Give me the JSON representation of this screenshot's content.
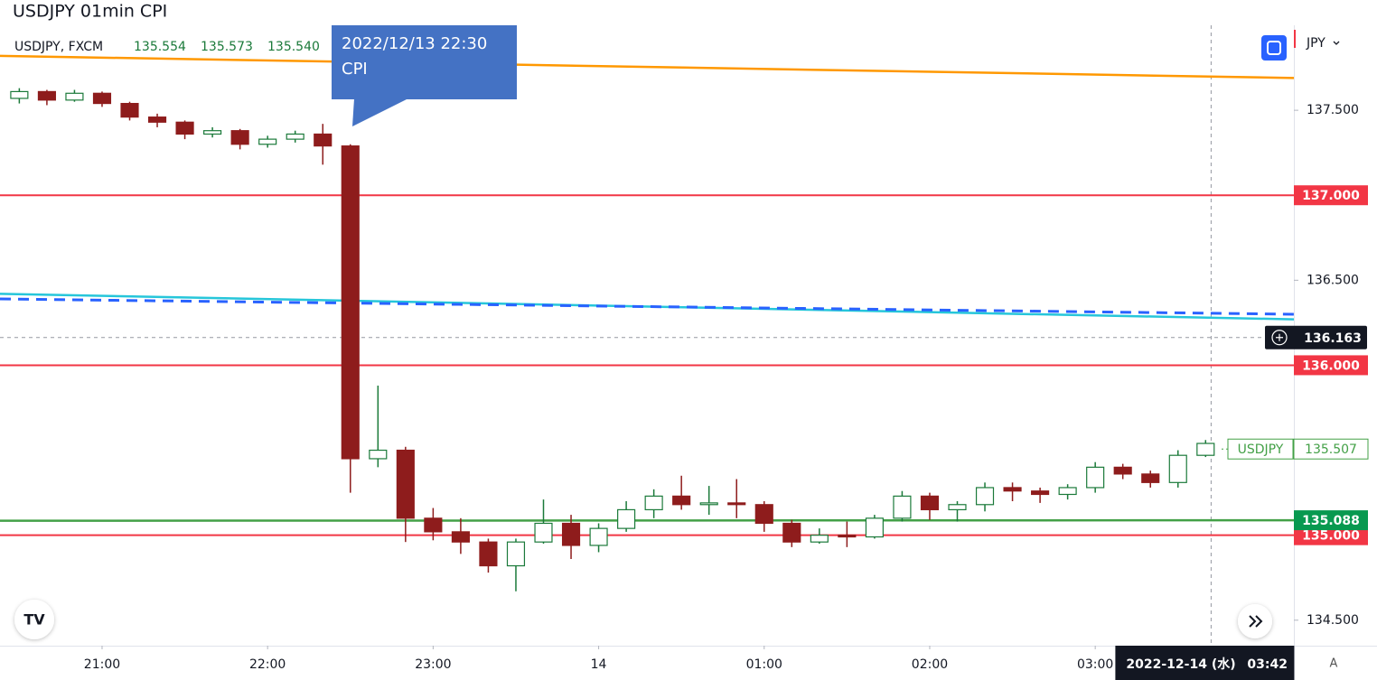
{
  "header": {
    "title": "USDJPY 01min CPI"
  },
  "chart_data": {
    "type": "candlestick",
    "symbol": "USDJPY, FXCM",
    "legend_values": [
      {
        "value": 135.554,
        "label": "135.554"
      },
      {
        "value": 135.573,
        "label": "135.573"
      },
      {
        "value": 135.54,
        "label": "135.540"
      }
    ],
    "x": [
      "20:30",
      "20:40",
      "20:50",
      "21:00",
      "21:10",
      "21:20",
      "21:30",
      "21:40",
      "21:50",
      "22:00",
      "22:10",
      "22:20",
      "22:30",
      "22:40",
      "22:50",
      "23:00",
      "23:10",
      "23:20",
      "23:30",
      "23:40",
      "23:50",
      "00:00",
      "00:10",
      "00:20",
      "00:30",
      "00:40",
      "00:50",
      "01:00",
      "01:10",
      "01:20",
      "01:30",
      "01:40",
      "01:50",
      "02:00",
      "02:10",
      "02:20",
      "02:30",
      "02:40",
      "02:50",
      "03:00",
      "03:10",
      "03:20",
      "03:30",
      "03:40"
    ],
    "open": [
      137.57,
      137.61,
      137.56,
      137.6,
      137.54,
      137.46,
      137.43,
      137.36,
      137.38,
      137.3,
      137.33,
      137.36,
      137.29,
      135.45,
      135.5,
      135.1,
      135.02,
      134.96,
      134.82,
      134.96,
      135.07,
      134.94,
      135.04,
      135.15,
      135.23,
      135.18,
      135.19,
      135.18,
      135.07,
      134.96,
      135.0,
      134.99,
      135.1,
      135.23,
      135.15,
      135.18,
      135.28,
      135.26,
      135.24,
      135.28,
      135.4,
      135.36,
      135.31,
      135.47
    ],
    "high": [
      137.63,
      137.62,
      137.62,
      137.61,
      137.55,
      137.48,
      137.44,
      137.4,
      137.39,
      137.35,
      137.38,
      137.42,
      137.3,
      135.88,
      135.52,
      135.16,
      135.1,
      134.98,
      134.98,
      135.21,
      135.12,
      135.07,
      135.2,
      135.27,
      135.35,
      135.29,
      135.33,
      135.2,
      135.09,
      135.04,
      135.08,
      135.12,
      135.26,
      135.25,
      135.2,
      135.31,
      135.31,
      135.28,
      135.3,
      135.43,
      135.42,
      135.38,
      135.5,
      135.56
    ],
    "low": [
      137.54,
      137.53,
      137.55,
      137.52,
      137.44,
      137.4,
      137.33,
      137.34,
      137.27,
      137.28,
      137.31,
      137.18,
      135.25,
      135.4,
      134.96,
      134.97,
      134.89,
      134.78,
      134.67,
      134.95,
      134.86,
      134.9,
      135.02,
      135.1,
      135.15,
      135.12,
      135.1,
      135.02,
      134.93,
      134.95,
      134.93,
      134.98,
      135.08,
      135.09,
      135.08,
      135.14,
      135.2,
      135.19,
      135.21,
      135.25,
      135.33,
      135.28,
      135.28,
      135.46
    ],
    "close": [
      137.61,
      137.56,
      137.6,
      137.54,
      137.46,
      137.43,
      137.36,
      137.38,
      137.3,
      137.33,
      137.36,
      137.29,
      135.45,
      135.5,
      135.1,
      135.02,
      134.96,
      134.82,
      134.96,
      135.07,
      134.94,
      135.04,
      135.15,
      135.23,
      135.18,
      135.19,
      135.18,
      135.07,
      134.96,
      135.0,
      134.99,
      135.1,
      135.23,
      135.15,
      135.18,
      135.28,
      135.26,
      135.24,
      135.28,
      135.4,
      135.36,
      135.31,
      135.47,
      135.54
    ],
    "up_color": "#1b7a3a",
    "down_color": "#8e1c1c",
    "xlim": [
      "20:23",
      "04:12"
    ],
    "ylim": [
      134.35,
      138.0
    ],
    "xticks": [
      "21:00",
      "22:00",
      "23:00",
      {
        "value": "00:00",
        "label": "14"
      },
      "01:00",
      "02:00",
      "03:00"
    ],
    "yticks": [
      {
        "value": 137.5,
        "label": "137.500"
      },
      {
        "value": 136.5,
        "label": "136.500"
      },
      {
        "value": 134.5,
        "label": "134.500"
      }
    ],
    "price_lines": [
      {
        "value": 137,
        "label": "137.000",
        "color": "#f23645"
      },
      {
        "value": 136,
        "label": "136.000",
        "color": "#f23645"
      },
      {
        "value": 135,
        "label": "135.000",
        "color": "#f23645"
      }
    ],
    "trend_lines": [
      {
        "x": [
          "20:23",
          "04:12"
        ],
        "y": [
          137.82,
          137.69
        ],
        "color": "#ff9800",
        "dash": false
      },
      {
        "x": [
          "20:23",
          "04:12"
        ],
        "y": [
          136.42,
          136.27
        ],
        "color": "#26c6da",
        "dash": false
      },
      {
        "x": [
          "20:23",
          "04:12"
        ],
        "y": [
          136.39,
          136.3
        ],
        "color": "#2962ff",
        "dash": true
      },
      {
        "x": [
          "20:23",
          "04:12"
        ],
        "y": [
          135.085,
          135.088
        ],
        "color": "#43a047",
        "dash": false,
        "end_label": "135.088"
      }
    ],
    "last_price": {
      "name": "USDJPY",
      "value": 135.507,
      "label": "135.507",
      "color": "#43a047"
    },
    "crosshair": {
      "x": "03:42",
      "price": 136.163,
      "price_label": "136.163",
      "date_label": "2022-12-14 (水)",
      "time_label": "03:42"
    },
    "annotation": [
      "2022/12/13 22:30",
      "CPI"
    ],
    "currency": "JPY",
    "scale_mode": "A"
  }
}
